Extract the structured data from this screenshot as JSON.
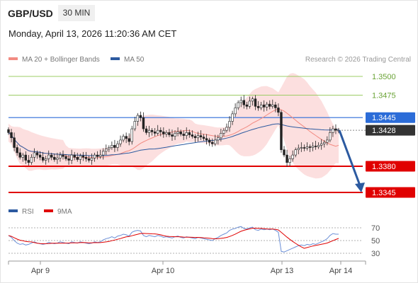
{
  "header": {
    "symbol": "GBP/USD",
    "timeframe": "30 MIN",
    "datetime": "Monday, April 13, 2026 11:20:36 AM CET",
    "copyright": "Research © 2026 Trading Central"
  },
  "legend": {
    "ma20_label": "MA 20 + Bollinger Bands",
    "ma50_label": "MA 50",
    "rsi_label": "RSI",
    "rsi_ma_label": "9MA"
  },
  "colors": {
    "ma20": "#f28b82",
    "ma50": "#2c5aa0",
    "bollinger": "#fcd9d9",
    "support": "#e00000",
    "resistance_blue": "#2b6cd8",
    "resistance_green": "#9ccc65",
    "current": "#333333",
    "arrow": "#2c5aa0"
  },
  "chart_data": {
    "type": "line",
    "x_labels": [
      "Apr 9",
      "Apr 10",
      "Apr 13",
      "Apr 14"
    ],
    "levels": [
      {
        "value": 1.35,
        "label": "1.3500",
        "kind": "resistance-minor"
      },
      {
        "value": 1.3475,
        "label": "1.3475",
        "kind": "resistance-minor"
      },
      {
        "value": 1.3445,
        "label": "1.3445",
        "kind": "resistance"
      },
      {
        "value": 1.3428,
        "label": "1.3428",
        "kind": "current"
      },
      {
        "value": 1.338,
        "label": "1.3380",
        "kind": "support"
      },
      {
        "value": 1.3345,
        "label": "1.3345",
        "kind": "target"
      }
    ],
    "price_close": [
      1.3425,
      1.3418,
      1.3405,
      1.3398,
      1.3392,
      1.3395,
      1.3388,
      1.3385,
      1.3392,
      1.3398,
      1.3395,
      1.3392,
      1.3388,
      1.339,
      1.3395,
      1.3392,
      1.3389,
      1.3391,
      1.3395,
      1.3393,
      1.339,
      1.3388,
      1.3395,
      1.3392,
      1.3389,
      1.3394,
      1.3392,
      1.339,
      1.3388,
      1.3391,
      1.3395,
      1.3393,
      1.3395,
      1.34,
      1.3403,
      1.3405,
      1.3408,
      1.3405,
      1.341,
      1.3415,
      1.342,
      1.3417,
      1.3413,
      1.343,
      1.344,
      1.3448,
      1.3445,
      1.343,
      1.3425,
      1.3428,
      1.3426,
      1.3424,
      1.3428,
      1.3426,
      1.3423,
      1.3425,
      1.3422,
      1.342,
      1.3424,
      1.3426,
      1.3423,
      1.3421,
      1.3425,
      1.3422,
      1.342,
      1.3418,
      1.3421,
      1.3419,
      1.3417,
      1.3415,
      1.3412,
      1.341,
      1.3415,
      1.3418,
      1.3424,
      1.3428,
      1.3432,
      1.344,
      1.345,
      1.3458,
      1.3465,
      1.3468,
      1.3462,
      1.346,
      1.3467,
      1.347,
      1.346,
      1.3458,
      1.3462,
      1.3459,
      1.3463,
      1.346,
      1.3462,
      1.3458,
      1.3452,
      1.3402,
      1.3395,
      1.3385,
      1.339,
      1.3395,
      1.3402,
      1.3404,
      1.3405,
      1.3404,
      1.3406,
      1.3405,
      1.3407,
      1.3406,
      1.3408,
      1.341,
      1.3412,
      1.3415,
      1.3425,
      1.343,
      1.3428,
      1.3428
    ],
    "rsi": [
      58,
      55,
      50,
      46,
      44,
      45,
      43,
      44,
      46,
      48,
      46,
      45,
      44,
      45,
      47,
      46,
      45,
      46,
      48,
      47,
      46,
      45,
      48,
      47,
      46,
      48,
      47,
      46,
      45,
      46,
      48,
      47,
      48,
      51,
      53,
      54,
      56,
      54,
      57,
      58,
      60,
      59,
      57,
      63,
      65,
      66,
      65,
      58,
      56,
      58,
      57,
      56,
      58,
      57,
      55,
      56,
      55,
      54,
      56,
      57,
      55,
      54,
      56,
      55,
      54,
      53,
      55,
      54,
      53,
      52,
      51,
      50,
      53,
      55,
      58,
      60,
      62,
      66,
      68,
      69,
      71,
      72,
      69,
      68,
      70,
      71,
      67,
      66,
      68,
      67,
      68,
      67,
      68,
      66,
      63,
      33,
      32,
      34,
      36,
      38,
      40,
      42,
      43,
      42,
      44,
      43,
      45,
      44,
      46,
      48,
      50,
      53,
      58,
      61,
      60,
      60
    ],
    "rsi_ylim": [
      30,
      70
    ],
    "rsi_ticks": [
      "70",
      "50",
      "30"
    ]
  }
}
